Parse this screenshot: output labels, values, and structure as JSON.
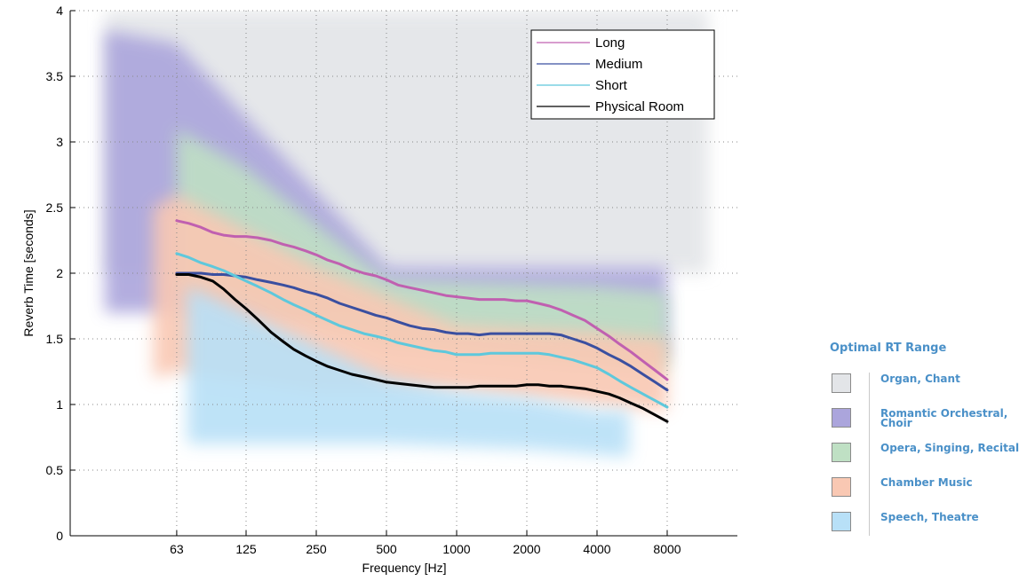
{
  "chart_data": {
    "type": "line",
    "xlabel": "Frequency [Hz]",
    "ylabel": "Reverb Time [seconds]",
    "x_scale": "log",
    "x_ticks": [
      "63",
      "125",
      "250",
      "500",
      "1000",
      "2000",
      "4000",
      "8000"
    ],
    "x_tick_values": [
      63,
      125,
      250,
      500,
      1000,
      2000,
      4000,
      8000
    ],
    "xlim": [
      22,
      16000
    ],
    "y_ticks": [
      "0",
      "0.5",
      "1",
      "1.5",
      "2",
      "2.5",
      "3",
      "3.5",
      "4"
    ],
    "ylim": [
      0,
      4
    ],
    "grid": true,
    "legend_position": "top-right",
    "x": [
      63,
      71,
      80,
      90,
      100,
      112,
      125,
      140,
      160,
      180,
      200,
      225,
      250,
      280,
      315,
      355,
      400,
      450,
      500,
      560,
      630,
      710,
      800,
      900,
      1000,
      1120,
      1250,
      1400,
      1600,
      1800,
      2000,
      2240,
      2500,
      2800,
      3150,
      3550,
      4000,
      4500,
      5000,
      5600,
      6300,
      7100,
      8000
    ],
    "series": [
      {
        "name": "Long",
        "color": "#c060b0",
        "values": [
          2.4,
          2.38,
          2.35,
          2.31,
          2.29,
          2.28,
          2.28,
          2.27,
          2.25,
          2.22,
          2.2,
          2.17,
          2.14,
          2.1,
          2.07,
          2.03,
          2.0,
          1.98,
          1.95,
          1.91,
          1.89,
          1.87,
          1.85,
          1.83,
          1.82,
          1.81,
          1.8,
          1.8,
          1.8,
          1.79,
          1.79,
          1.77,
          1.75,
          1.72,
          1.68,
          1.64,
          1.58,
          1.52,
          1.46,
          1.4,
          1.33,
          1.26,
          1.19
        ]
      },
      {
        "name": "Medium",
        "color": "#3a4fa0",
        "values": [
          2.0,
          2.0,
          2.0,
          1.99,
          1.99,
          1.98,
          1.97,
          1.95,
          1.93,
          1.91,
          1.89,
          1.86,
          1.84,
          1.81,
          1.77,
          1.74,
          1.71,
          1.68,
          1.66,
          1.63,
          1.6,
          1.58,
          1.57,
          1.55,
          1.54,
          1.54,
          1.53,
          1.54,
          1.54,
          1.54,
          1.54,
          1.54,
          1.54,
          1.53,
          1.5,
          1.47,
          1.43,
          1.38,
          1.34,
          1.29,
          1.23,
          1.17,
          1.11
        ]
      },
      {
        "name": "Short",
        "color": "#5ec8dc",
        "values": [
          2.15,
          2.12,
          2.08,
          2.05,
          2.02,
          1.98,
          1.94,
          1.9,
          1.85,
          1.8,
          1.76,
          1.72,
          1.68,
          1.64,
          1.6,
          1.57,
          1.54,
          1.52,
          1.5,
          1.47,
          1.45,
          1.43,
          1.41,
          1.4,
          1.38,
          1.38,
          1.38,
          1.39,
          1.39,
          1.39,
          1.39,
          1.39,
          1.38,
          1.36,
          1.34,
          1.31,
          1.28,
          1.23,
          1.18,
          1.13,
          1.08,
          1.03,
          0.98
        ]
      },
      {
        "name": "Physical Room",
        "color": "#000000",
        "values": [
          1.99,
          1.99,
          1.97,
          1.94,
          1.88,
          1.8,
          1.73,
          1.65,
          1.55,
          1.48,
          1.42,
          1.37,
          1.33,
          1.29,
          1.26,
          1.23,
          1.21,
          1.19,
          1.17,
          1.16,
          1.15,
          1.14,
          1.13,
          1.13,
          1.13,
          1.13,
          1.14,
          1.14,
          1.14,
          1.14,
          1.15,
          1.15,
          1.14,
          1.14,
          1.13,
          1.12,
          1.1,
          1.08,
          1.05,
          1.01,
          0.97,
          0.92,
          0.87
        ]
      }
    ],
    "optimal_ranges": [
      {
        "name": "Organ, Chant",
        "color": "#e3e5e8",
        "x": [
          31,
          90,
          250,
          500,
          8000,
          12000
        ],
        "lower": [
          2.0,
          2.0,
          2.0,
          2.0,
          2.0,
          2.0
        ],
        "upper": [
          4.0,
          4.0,
          4.0,
          4.0,
          4.0,
          4.0
        ]
      },
      {
        "name": "Romantic Orchestral, Choir",
        "color": "#aba5dc",
        "x": [
          31,
          63,
          500,
          8000
        ],
        "lower": [
          1.7,
          1.7,
          1.65,
          1.35
        ],
        "upper": [
          3.85,
          3.75,
          2.05,
          2.05
        ]
      },
      {
        "name": "Opera, Singing, Recital",
        "color": "#bfe0c4",
        "x": [
          63,
          125,
          500,
          4000,
          8000
        ],
        "lower": [
          1.9,
          1.75,
          1.45,
          1.3,
          1.25
        ],
        "upper": [
          3.1,
          2.8,
          1.95,
          1.9,
          1.85
        ]
      },
      {
        "name": "Chamber Music",
        "color": "#f9c8b3",
        "x": [
          50,
          63,
          250,
          1000,
          4000,
          8000
        ],
        "lower": [
          1.2,
          1.25,
          1.1,
          1.1,
          1.0,
          0.95
        ],
        "upper": [
          2.5,
          2.6,
          2.05,
          1.6,
          1.55,
          1.5
        ]
      },
      {
        "name": "Speech, Theatre",
        "color": "#b8e0f7",
        "x": [
          70,
          500,
          1000,
          2000,
          4000,
          5500
        ],
        "lower": [
          0.7,
          0.7,
          0.68,
          0.66,
          0.62,
          0.6
        ],
        "upper": [
          1.9,
          1.2,
          1.1,
          1.05,
          0.95,
          0.95
        ]
      }
    ]
  },
  "key": {
    "title": "Optimal RT Range",
    "items": [
      {
        "label": "Organ, Chant",
        "color": "#e3e5e8"
      },
      {
        "label": "Romantic Orchestral, Choir",
        "color": "#aba5dc"
      },
      {
        "label": "Opera, Singing, Recital",
        "color": "#bfe0c4"
      },
      {
        "label": "Chamber Music",
        "color": "#f9c8b3"
      },
      {
        "label": "Speech, Theatre",
        "color": "#b8e0f7"
      }
    ]
  }
}
